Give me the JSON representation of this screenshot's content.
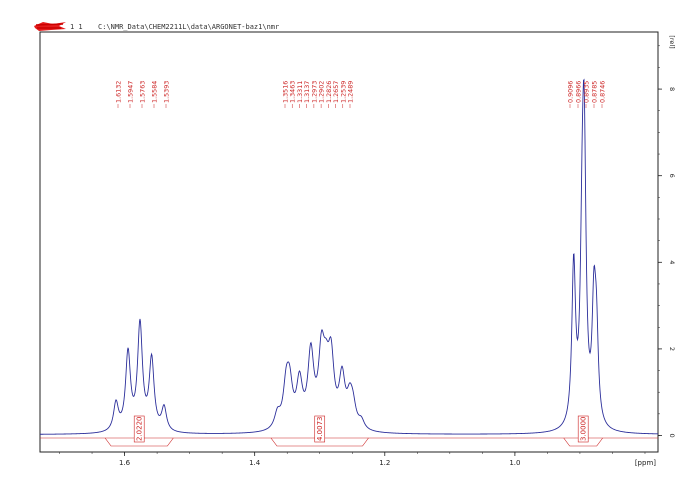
{
  "header": {
    "proc_numbers": "1  1",
    "file_path": "C:\\NMR_Data\\CHEM2211L\\data\\ARGONET-baz1\\nmr"
  },
  "colors": {
    "spectrum": "#2b2e9a",
    "annotation": "#cc2222",
    "axis": "#222222"
  },
  "chart_data": {
    "type": "line",
    "title": "",
    "xlabel": "[ppm]",
    "ylabel": "[rel]",
    "xlim": [
      1.73,
      0.78
    ],
    "ylim": [
      -0.1,
      9.2
    ],
    "x_axis_reversed": true,
    "x_ticks": [
      {
        "value": 1.6,
        "label": "1.6"
      },
      {
        "value": 1.4,
        "label": "1.4"
      },
      {
        "value": 1.2,
        "label": "1.2"
      },
      {
        "value": 1.0,
        "label": "1.0"
      }
    ],
    "y_ticks": [
      {
        "value": 0,
        "label": "0"
      },
      {
        "value": 2,
        "label": "2"
      },
      {
        "value": 4,
        "label": "4"
      },
      {
        "value": 6,
        "label": "6"
      },
      {
        "value": 8,
        "label": "8"
      }
    ],
    "grid": false,
    "peak_labels": [
      {
        "group": "a",
        "values": [
          "1.6132",
          "1.5947",
          "1.5763",
          "1.5584",
          "1.5393"
        ]
      },
      {
        "group": "b",
        "values": [
          "1.3516",
          "1.3463",
          "1.3311",
          "1.3137",
          "1.2973",
          "1.2902",
          "1.2826",
          "1.2657",
          "1.2539",
          "1.2489"
        ]
      },
      {
        "group": "c",
        "values": [
          "0.9096",
          "0.8966",
          "0.8935",
          "0.8785",
          "0.8746"
        ]
      }
    ],
    "series": [
      {
        "peaks": [
          {
            "ppm": 1.6132,
            "height": 0.65,
            "width": 0.0045
          },
          {
            "ppm": 1.5947,
            "height": 1.8,
            "width": 0.0045
          },
          {
            "ppm": 1.5763,
            "height": 2.45,
            "width": 0.0045
          },
          {
            "ppm": 1.5584,
            "height": 1.65,
            "width": 0.0045
          },
          {
            "ppm": 1.5393,
            "height": 0.55,
            "width": 0.0045
          },
          {
            "ppm": 1.365,
            "height": 0.35,
            "width": 0.0055
          },
          {
            "ppm": 1.3516,
            "height": 0.9,
            "width": 0.0055
          },
          {
            "ppm": 1.3463,
            "height": 0.9,
            "width": 0.0055
          },
          {
            "ppm": 1.3311,
            "height": 1.05,
            "width": 0.0055
          },
          {
            "ppm": 1.3137,
            "height": 1.7,
            "width": 0.0055
          },
          {
            "ppm": 1.2973,
            "height": 1.6,
            "width": 0.0055
          },
          {
            "ppm": 1.2902,
            "height": 0.9,
            "width": 0.0055
          },
          {
            "ppm": 1.2826,
            "height": 1.5,
            "width": 0.0055
          },
          {
            "ppm": 1.2657,
            "height": 1.15,
            "width": 0.0055
          },
          {
            "ppm": 1.2539,
            "height": 0.6,
            "width": 0.0055
          },
          {
            "ppm": 1.2489,
            "height": 0.45,
            "width": 0.0055
          },
          {
            "ppm": 1.236,
            "height": 0.2,
            "width": 0.0055
          },
          {
            "ppm": 0.9096,
            "height": 3.7,
            "width": 0.0034
          },
          {
            "ppm": 0.8966,
            "height": 3.2,
            "width": 0.0034
          },
          {
            "ppm": 0.8935,
            "height": 6.0,
            "width": 0.0034
          },
          {
            "ppm": 0.8785,
            "height": 2.6,
            "width": 0.0034
          },
          {
            "ppm": 0.8746,
            "height": 1.9,
            "width": 0.0034
          }
        ]
      }
    ],
    "integrals": [
      {
        "label": "2.0220",
        "from": 1.63,
        "to": 1.525
      },
      {
        "label": "4.0073",
        "from": 1.375,
        "to": 1.225
      },
      {
        "label": "3.0000",
        "from": 0.925,
        "to": 0.865
      }
    ]
  }
}
